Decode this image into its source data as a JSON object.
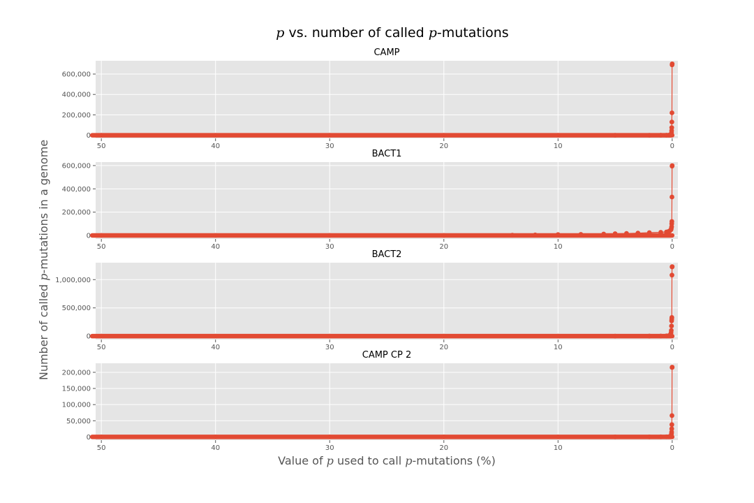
{
  "title": {
    "pre": "",
    "var": "p",
    "post": " vs. number of called ",
    "var2": "p",
    "post2": "-mutations"
  },
  "xlabel": {
    "pre": "Value of ",
    "var": "p",
    "mid": " used to call ",
    "var2": "p",
    "post": "-mutations (%)"
  },
  "ylabel": {
    "pre": "Number of called ",
    "var": "p",
    "post": "-mutations in a genome"
  },
  "colors": {
    "series": "#E24A33",
    "panel_bg": "#E5E5E5",
    "grid": "#FFFFFF",
    "text": "#555555"
  },
  "chart_data": [
    {
      "type": "line",
      "title": "CAMP",
      "xlim": [
        50.5,
        -0.5
      ],
      "ylim": [
        -30000,
        730000
      ],
      "xticks": [
        50,
        40,
        30,
        20,
        10,
        0
      ],
      "xticklabels": [
        "50",
        "40",
        "30",
        "20",
        "10",
        "0"
      ],
      "yticks": [
        0,
        200000,
        400000,
        600000
      ],
      "yticklabels": [
        "0",
        "200,000",
        "400,000",
        "600,000"
      ],
      "grid": true,
      "series": [
        {
          "x": [
            0.0,
            0.01,
            0.02,
            0.03,
            0.04,
            0.05,
            0.06,
            0.08,
            0.1,
            0.15,
            0.2,
            0.3,
            0.5,
            1,
            2,
            5,
            10,
            20,
            30,
            40,
            50
          ],
          "y": [
            700000,
            690000,
            220000,
            130000,
            75000,
            45000,
            25000,
            15000,
            8000,
            4000,
            2000,
            1000,
            500,
            300,
            150,
            50,
            10,
            0,
            0,
            0,
            0
          ]
        }
      ]
    },
    {
      "type": "line",
      "title": "BACT1",
      "xlim": [
        50.5,
        -0.5
      ],
      "ylim": [
        -30000,
        630000
      ],
      "xticks": [
        50,
        40,
        30,
        20,
        10,
        0
      ],
      "xticklabels": [
        "50",
        "40",
        "30",
        "20",
        "10",
        "0"
      ],
      "yticks": [
        0,
        200000,
        400000,
        600000
      ],
      "yticklabels": [
        "0",
        "200,000",
        "400,000",
        "600,000"
      ],
      "grid": true,
      "series": [
        {
          "x": [
            0.0,
            0.01,
            0.02,
            0.03,
            0.04,
            0.05,
            0.08,
            0.1,
            0.2,
            0.3,
            0.5,
            1,
            2,
            3,
            4,
            5,
            6,
            8,
            10,
            12,
            14,
            20,
            30,
            40,
            50
          ],
          "y": [
            600000,
            595000,
            330000,
            120000,
            100000,
            75000,
            60000,
            50000,
            40000,
            35000,
            30000,
            27000,
            24000,
            20000,
            17000,
            15000,
            12000,
            9000,
            7000,
            4000,
            2000,
            0,
            0,
            0,
            0
          ]
        }
      ]
    },
    {
      "type": "line",
      "title": "BACT2",
      "xlim": [
        50.5,
        -0.5
      ],
      "ylim": [
        -60000,
        1300000
      ],
      "xticks": [
        50,
        40,
        30,
        20,
        10,
        0
      ],
      "xticklabels": [
        "50",
        "40",
        "30",
        "20",
        "10",
        "0"
      ],
      "yticks": [
        0,
        500000,
        1000000
      ],
      "yticklabels": [
        "0",
        "500,000",
        "1,000,000"
      ],
      "grid": true,
      "series": [
        {
          "x": [
            0.0,
            0.01,
            0.02,
            0.03,
            0.04,
            0.05,
            0.06,
            0.08,
            0.1,
            0.15,
            0.2,
            0.3,
            0.5,
            1,
            2,
            5,
            10,
            20,
            30,
            40,
            50
          ],
          "y": [
            1230000,
            1225000,
            1080000,
            330000,
            300000,
            270000,
            180000,
            100000,
            60000,
            30000,
            15000,
            8000,
            4000,
            2000,
            1000,
            300,
            50,
            0,
            0,
            0,
            0
          ]
        }
      ]
    },
    {
      "type": "line",
      "title": "CAMP CP 2",
      "xlim": [
        50.5,
        -0.5
      ],
      "ylim": [
        -10000,
        228000
      ],
      "xticks": [
        50,
        40,
        30,
        20,
        10,
        0
      ],
      "xticklabels": [
        "50",
        "40",
        "30",
        "20",
        "10",
        "0"
      ],
      "yticks": [
        0,
        50000,
        100000,
        150000,
        200000
      ],
      "yticklabels": [
        "0",
        "50,000",
        "100,000",
        "150,000",
        "200,000"
      ],
      "grid": true,
      "series": [
        {
          "x": [
            0.0,
            0.01,
            0.02,
            0.03,
            0.04,
            0.05,
            0.06,
            0.08,
            0.1,
            0.15,
            0.2,
            0.3,
            0.5,
            1,
            2,
            5,
            10,
            20,
            30,
            40,
            50
          ],
          "y": [
            216000,
            215000,
            66000,
            38000,
            25000,
            15000,
            10000,
            6000,
            3000,
            1500,
            800,
            400,
            200,
            100,
            50,
            10,
            0,
            0,
            0,
            0,
            0
          ]
        }
      ]
    }
  ]
}
